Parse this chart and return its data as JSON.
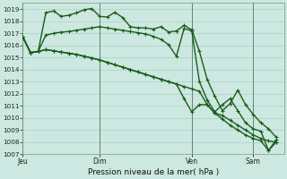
{
  "background_color": "#cce8e0",
  "grid_color": "#aad0c8",
  "line_color": "#1a5c1a",
  "line_width": 1.0,
  "marker": "+",
  "marker_size": 3.5,
  "marker_lw": 0.8,
  "title": "Pression niveau de la mer( hPa )",
  "ylim": [
    1007,
    1019.5
  ],
  "yticks": [
    1007,
    1008,
    1009,
    1010,
    1011,
    1012,
    1013,
    1014,
    1015,
    1016,
    1017,
    1018,
    1019
  ],
  "xtick_labels": [
    "Jeu",
    "Dim",
    "Ven",
    "Sam"
  ],
  "xtick_positions": [
    0,
    10,
    22,
    30
  ],
  "xlim": [
    0,
    34
  ],
  "vlines": [
    0,
    10,
    22,
    30
  ],
  "series": [
    [
      1016.7,
      1015.4,
      1015.5,
      1018.7,
      1018.85,
      1018.4,
      1018.5,
      1018.7,
      1018.95,
      1019.05,
      1018.4,
      1018.35,
      1018.75,
      1018.3,
      1017.55,
      1017.45,
      1017.45,
      1017.35,
      1017.55,
      1017.1,
      1017.2,
      1017.65,
      1017.3,
      1015.5,
      1013.2,
      1011.8,
      1010.6,
      1011.2,
      1012.3,
      1011.1,
      1010.3,
      1009.6,
      1009.1,
      1008.4
    ],
    [
      1016.7,
      1015.4,
      1015.5,
      1016.85,
      1017.0,
      1017.1,
      1017.15,
      1017.25,
      1017.35,
      1017.45,
      1017.55,
      1017.45,
      1017.35,
      1017.25,
      1017.15,
      1017.05,
      1016.95,
      1016.75,
      1016.5,
      1016.05,
      1015.1,
      1017.4,
      1017.2,
      1013.0,
      1011.5,
      1010.5,
      1011.1,
      1011.6,
      1010.6,
      1009.6,
      1009.1,
      1008.9,
      1007.3,
      1008.2
    ],
    [
      1016.7,
      1015.4,
      1015.5,
      1015.65,
      1015.55,
      1015.45,
      1015.35,
      1015.25,
      1015.1,
      1014.95,
      1014.8,
      1014.6,
      1014.4,
      1014.2,
      1014.0,
      1013.8,
      1013.6,
      1013.4,
      1013.2,
      1013.0,
      1012.8,
      1012.6,
      1012.4,
      1012.2,
      1011.1,
      1010.4,
      1010.2,
      1009.8,
      1009.4,
      1009.0,
      1008.6,
      1008.3,
      1008.1,
      1008.0
    ],
    [
      1016.7,
      1015.4,
      1015.5,
      1015.65,
      1015.55,
      1015.45,
      1015.35,
      1015.25,
      1015.1,
      1014.95,
      1014.8,
      1014.6,
      1014.4,
      1014.2,
      1014.0,
      1013.8,
      1013.6,
      1013.4,
      1013.2,
      1013.0,
      1012.8,
      1011.6,
      1010.5,
      1011.1,
      1011.1,
      1010.4,
      1009.9,
      1009.4,
      1009.0,
      1008.6,
      1008.3,
      1008.1,
      1007.3,
      1008.0
    ]
  ]
}
